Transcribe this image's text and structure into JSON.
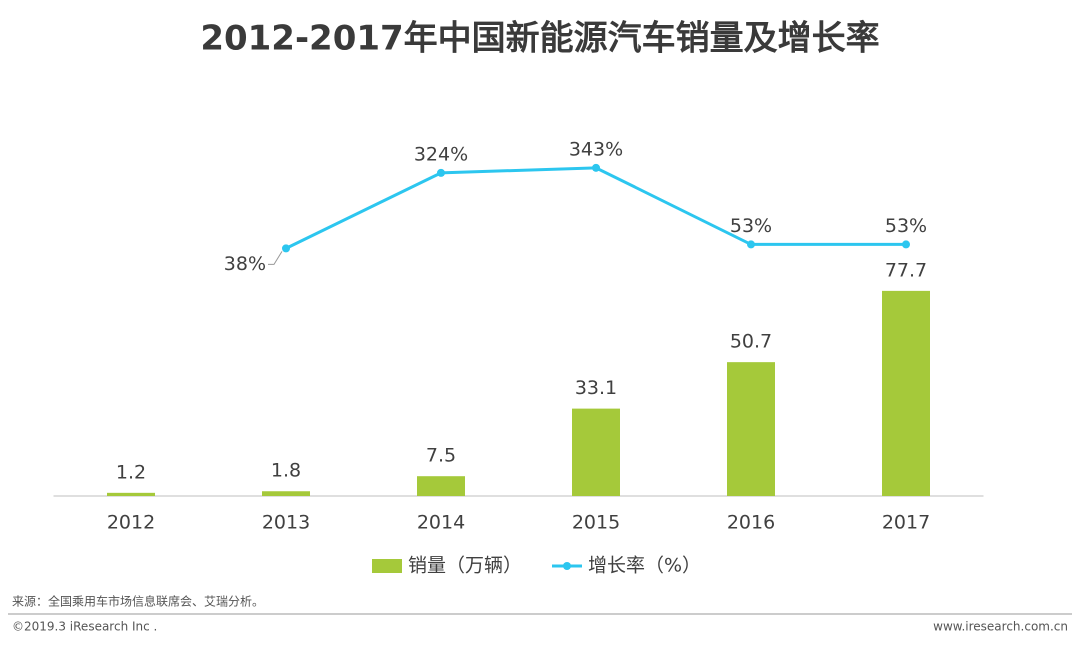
{
  "chart_data": {
    "type": "bar",
    "title": "2012-2017年中国新能源汽车销量及增长率",
    "categories": [
      "2012",
      "2013",
      "2014",
      "2015",
      "2016",
      "2017"
    ],
    "series": [
      {
        "name": "销量（万辆）",
        "type": "bar",
        "color": "#a5c93a",
        "values": [
          1.2,
          1.8,
          7.5,
          33.1,
          50.7,
          77.7
        ]
      },
      {
        "name": "增长率（%）",
        "type": "line",
        "axis": "y2",
        "color": "#2cc6ef",
        "values": [
          null,
          38,
          324,
          343,
          53,
          53
        ],
        "value_labels": [
          null,
          "38%",
          "324%",
          "343%",
          "53%",
          "53%"
        ]
      }
    ],
    "ylim": [
      0,
      150
    ],
    "y2lim": [
      -900,
      600
    ],
    "legend": "bottom"
  },
  "source": "来源：全国乘用车市场信息联席会、艾瑞分析。",
  "footer_left": "©2019.3 iResearch Inc .",
  "footer_right": "www.iresearch.com.cn"
}
